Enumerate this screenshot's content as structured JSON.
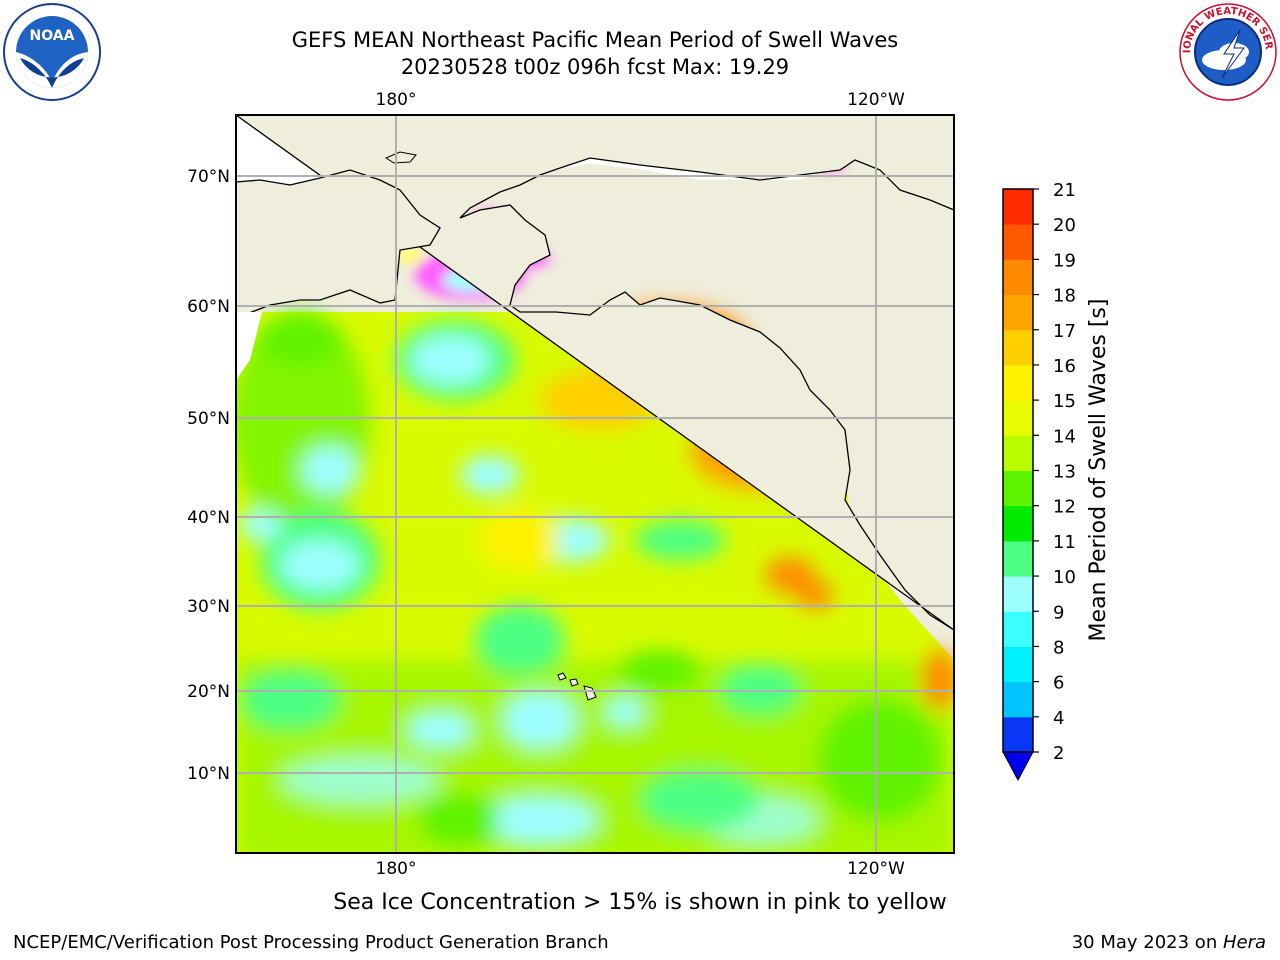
{
  "header": {
    "title_line1": "GEFS MEAN Northeast Pacific Mean Period of Swell Waves",
    "title_line2": "20230528 t00z 096h fcst   Max: 19.29"
  },
  "logos": {
    "left": {
      "icon": "noaa-logo-icon",
      "text": "NOAA"
    },
    "right": {
      "icon": "nws-logo-icon",
      "text": "NATIONAL WEATHER SERVICE"
    }
  },
  "map": {
    "top_lon_labels": [
      "180°",
      "120°W"
    ],
    "bottom_lon_labels": [
      "180°",
      "120°W"
    ],
    "lat_labels": [
      "70°N",
      "60°N",
      "50°N",
      "40°N",
      "30°N",
      "20°N",
      "10°N"
    ],
    "land_color": "#efeedc",
    "grid_color": "#b0b0b0"
  },
  "colorbar": {
    "label": "Mean Period of Swell Waves [s]",
    "ticks": [
      "2",
      "4",
      "6",
      "8",
      "9",
      "10",
      "11",
      "12",
      "13",
      "14",
      "15",
      "16",
      "17",
      "18",
      "19",
      "20",
      "21"
    ],
    "colors": [
      "#0a37f5",
      "#00c4ff",
      "#00f0ff",
      "#3cffff",
      "#9effff",
      "#4dff83",
      "#00ea00",
      "#5ff200",
      "#b8fc00",
      "#e7fc00",
      "#fff200",
      "#ffcf00",
      "#ffa400",
      "#ff8a00",
      "#ff5a00",
      "#ff2c00",
      "#ff0000"
    ],
    "under_color": "#0000ee"
  },
  "note": "Sea Ice Concentration > 15% is shown in pink to yellow",
  "footer": {
    "left": "NCEP/EMC/Verification Post Processing Product Generation Branch",
    "right_prefix": "30 May 2023 on ",
    "right_machine": "Hera"
  }
}
